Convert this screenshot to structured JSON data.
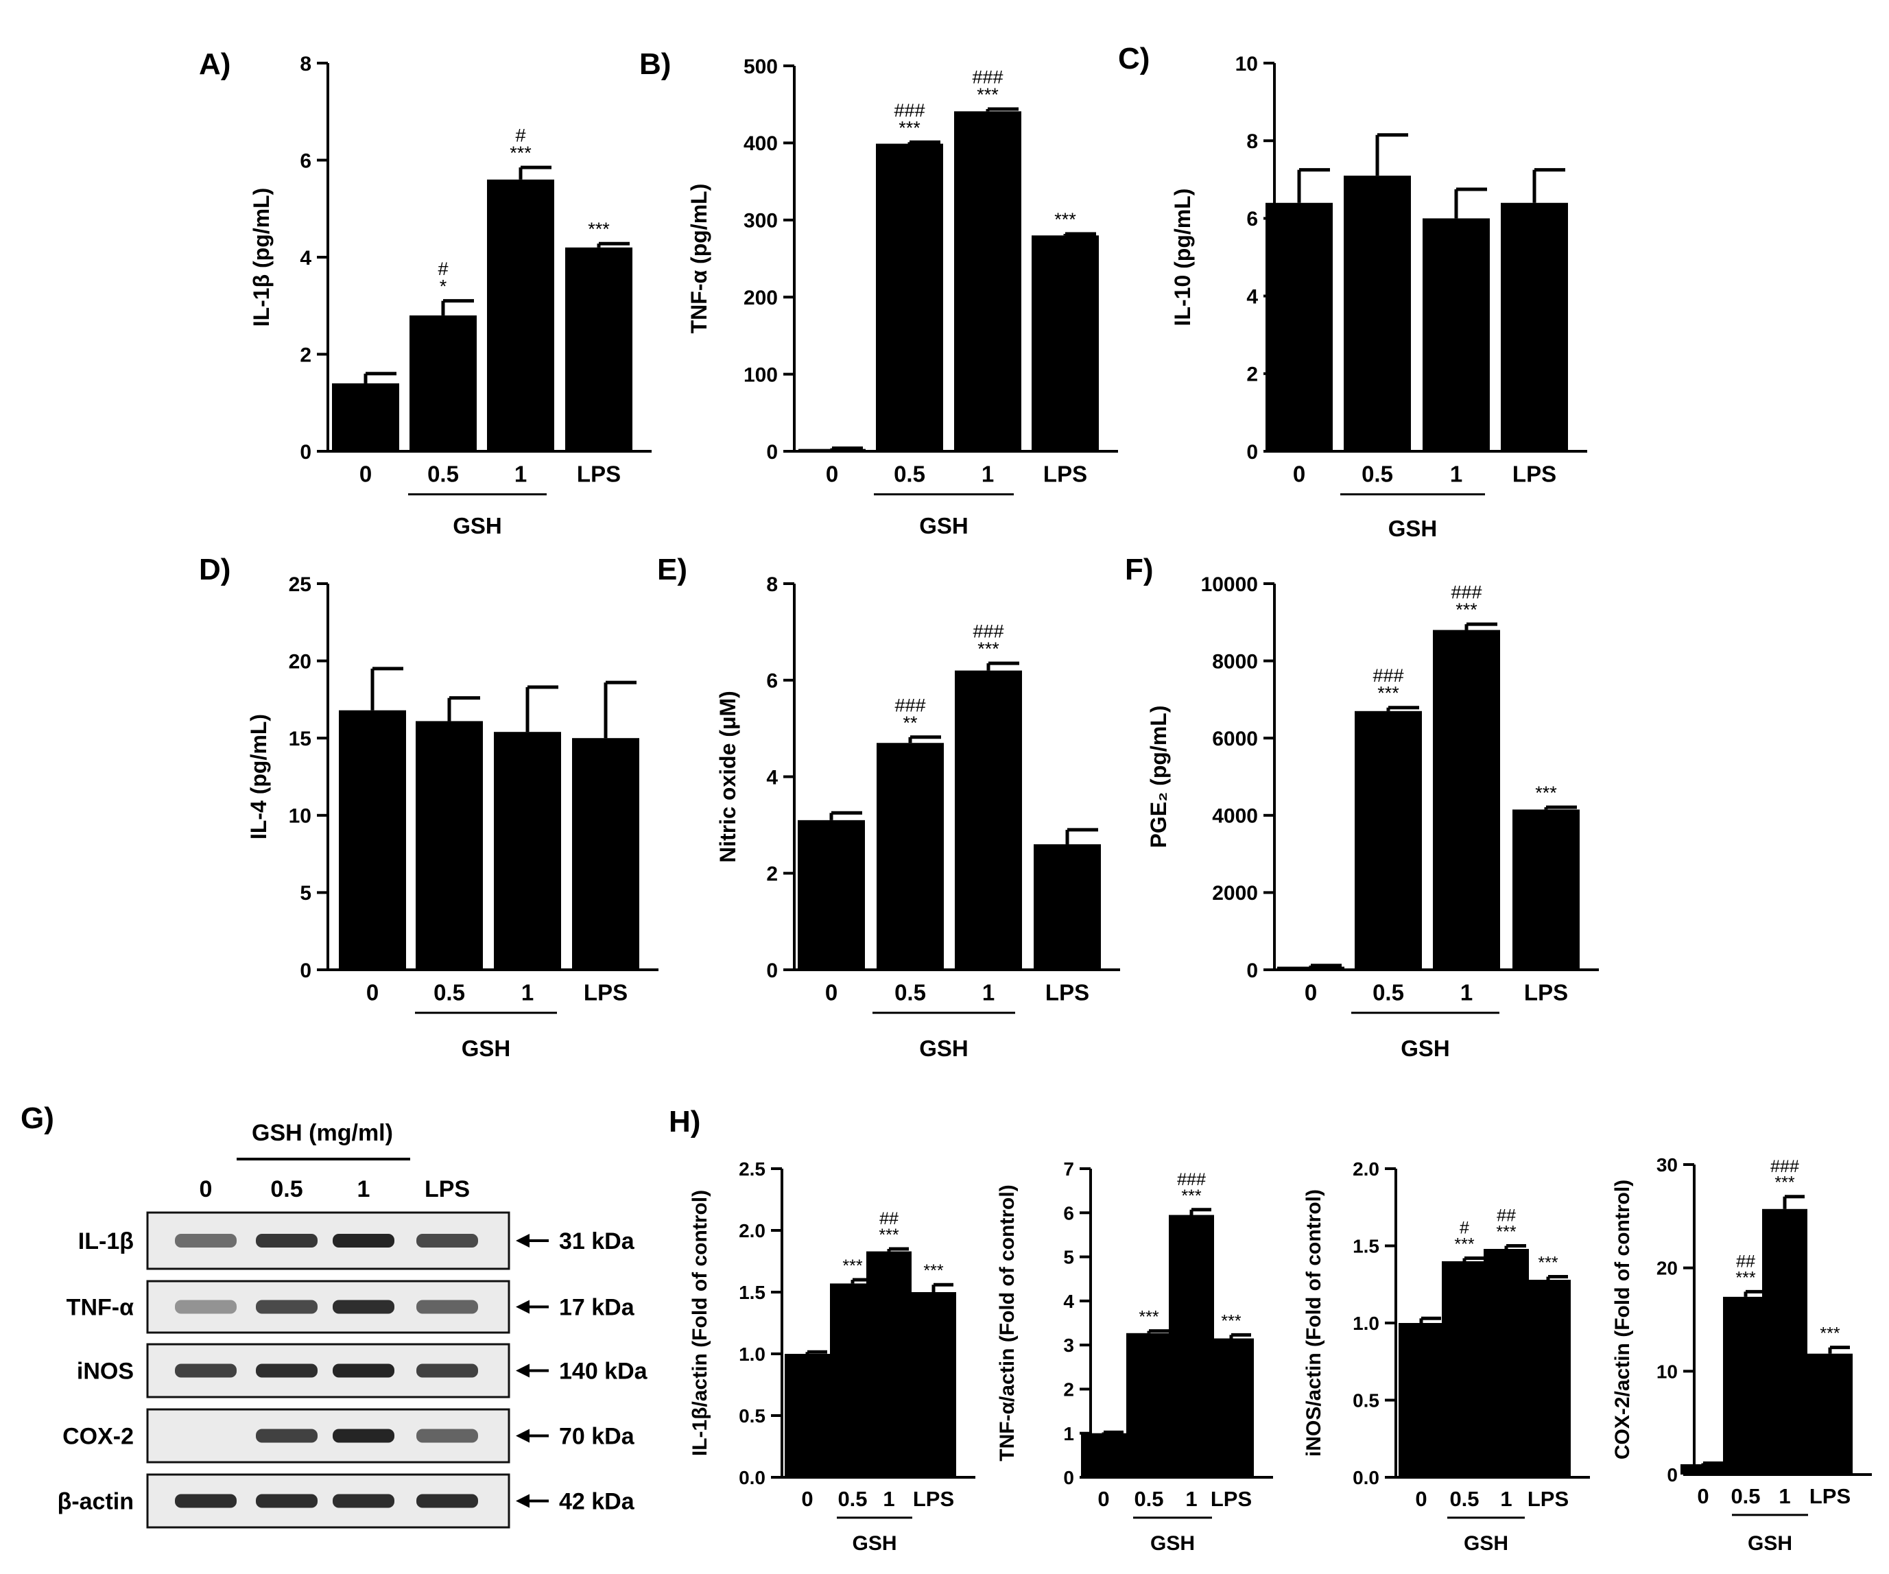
{
  "chart_data": [
    {
      "id": "A",
      "panel_label": "A)",
      "type": "bar",
      "ylabel": "IL-1β (pg/mL)",
      "categories": [
        "0",
        "0.5",
        "1",
        "LPS"
      ],
      "group_label": "GSH",
      "ylim": [
        0,
        8
      ],
      "yticks": [
        "0",
        "2",
        "4",
        "6",
        "8"
      ],
      "values": [
        1.4,
        2.8,
        5.6,
        4.2
      ],
      "errors": [
        0.2,
        0.3,
        0.25,
        0.08
      ],
      "significance": [
        [],
        [
          "#",
          "*"
        ],
        [
          "#",
          "***"
        ],
        [
          "***"
        ]
      ]
    },
    {
      "id": "B",
      "panel_label": "B)",
      "type": "bar",
      "ylabel": "TNF-α (pg/mL)",
      "categories": [
        "0",
        "0.5",
        "1",
        "LPS"
      ],
      "group_label": "GSH",
      "ylim": [
        0,
        500
      ],
      "yticks": [
        "0",
        "100",
        "200",
        "300",
        "400",
        "500"
      ],
      "values": [
        3,
        399,
        441,
        280
      ],
      "errors": [
        1,
        2,
        3,
        2
      ],
      "significance": [
        [],
        [
          "###",
          "***"
        ],
        [
          "###",
          "***"
        ],
        [
          "***"
        ]
      ]
    },
    {
      "id": "C",
      "panel_label": "C)",
      "type": "bar",
      "ylabel": "IL-10 (pg/mL)",
      "categories": [
        "0",
        "0.5",
        "1",
        "LPS"
      ],
      "group_label": "GSH",
      "ylim": [
        0,
        10
      ],
      "yticks": [
        "0",
        "2",
        "4",
        "6",
        "8",
        "10"
      ],
      "values": [
        6.4,
        7.1,
        6.0,
        6.4
      ],
      "errors": [
        0.85,
        1.05,
        0.75,
        0.85
      ],
      "significance": [
        [],
        [],
        [],
        []
      ]
    },
    {
      "id": "D",
      "panel_label": "D)",
      "type": "bar",
      "ylabel": "IL-4 (pg/mL)",
      "categories": [
        "0",
        "0.5",
        "1",
        "LPS"
      ],
      "group_label": "GSH",
      "ylim": [
        0,
        25
      ],
      "yticks": [
        "0",
        "5",
        "10",
        "15",
        "20",
        "25"
      ],
      "values": [
        16.8,
        16.1,
        15.4,
        15.0
      ],
      "errors": [
        2.7,
        1.5,
        2.9,
        3.6
      ],
      "significance": [
        [],
        [],
        [],
        []
      ]
    },
    {
      "id": "E",
      "panel_label": "E)",
      "type": "bar",
      "ylabel": "Nitric oxide (μM)",
      "categories": [
        "0",
        "0.5",
        "1",
        "LPS"
      ],
      "group_label": "GSH",
      "ylim": [
        0,
        8
      ],
      "yticks": [
        "0",
        "2",
        "4",
        "6",
        "8"
      ],
      "values": [
        3.1,
        4.7,
        6.2,
        2.6
      ],
      "errors": [
        0.15,
        0.12,
        0.15,
        0.3
      ],
      "significance": [
        [],
        [
          "###",
          "**"
        ],
        [
          "###",
          "***"
        ],
        []
      ]
    },
    {
      "id": "F",
      "panel_label": "F)",
      "type": "bar",
      "ylabel": "PGE₂ (pg/mL)",
      "categories": [
        "0",
        "0.5",
        "1",
        "LPS"
      ],
      "group_label": "GSH",
      "ylim": [
        0,
        10000
      ],
      "yticks": [
        "0",
        "2000",
        "4000",
        "6000",
        "8000",
        "10000"
      ],
      "values": [
        80,
        6700,
        8800,
        4150
      ],
      "errors": [
        30,
        90,
        150,
        60
      ],
      "significance": [
        [],
        [
          "###",
          "***"
        ],
        [
          "###",
          "***"
        ],
        [
          "***"
        ]
      ]
    },
    {
      "id": "H1",
      "panel_label": "H)",
      "type": "bar",
      "ylabel": "IL-1β/actin (Fold of control)",
      "categories": [
        "0",
        "0.5",
        "1",
        "LPS"
      ],
      "group_label": "GSH",
      "ylim": [
        0,
        2.5
      ],
      "yticks": [
        "0.0",
        "0.5",
        "1.0",
        "1.5",
        "2.0",
        "2.5"
      ],
      "values": [
        1.0,
        1.57,
        1.83,
        1.5
      ],
      "errors": [
        0.015,
        0.03,
        0.02,
        0.06
      ],
      "significance": [
        [],
        [
          "***"
        ],
        [
          "##",
          "***"
        ],
        [
          "***"
        ]
      ]
    },
    {
      "id": "H2",
      "panel_label": "",
      "type": "bar",
      "ylabel": "TNF-α/actin (Fold of control)",
      "categories": [
        "0",
        "0.5",
        "1",
        "LPS"
      ],
      "group_label": "GSH",
      "ylim": [
        0,
        7
      ],
      "yticks": [
        "0",
        "1",
        "2",
        "3",
        "4",
        "5",
        "6",
        "7"
      ],
      "values": [
        1.0,
        3.27,
        5.95,
        3.15
      ],
      "errors": [
        0.02,
        0.05,
        0.12,
        0.08
      ],
      "significance": [
        [],
        [
          "***"
        ],
        [
          "###",
          "***"
        ],
        [
          "***"
        ]
      ]
    },
    {
      "id": "H3",
      "panel_label": "",
      "type": "bar",
      "ylabel": "iNOS/actin (Fold of control)",
      "categories": [
        "0",
        "0.5",
        "1",
        "LPS"
      ],
      "group_label": "GSH",
      "ylim": [
        0,
        2.0
      ],
      "yticks": [
        "0.0",
        "0.5",
        "1.0",
        "1.5",
        "2.0"
      ],
      "values": [
        1.0,
        1.4,
        1.48,
        1.28
      ],
      "errors": [
        0.03,
        0.02,
        0.02,
        0.02
      ],
      "significance": [
        [],
        [
          "#",
          "***"
        ],
        [
          "##",
          "***"
        ],
        [
          "***"
        ]
      ]
    },
    {
      "id": "H4",
      "panel_label": "",
      "type": "bar",
      "ylabel": "COX-2/actin (Fold of control)",
      "categories": [
        "0",
        "0.5",
        "1",
        "LPS"
      ],
      "group_label": "GSH",
      "ylim": [
        0,
        30
      ],
      "yticks": [
        "0",
        "10",
        "20",
        "30"
      ],
      "values": [
        1.0,
        17.2,
        25.7,
        11.7
      ],
      "errors": [
        0.1,
        0.5,
        1.2,
        0.6
      ],
      "significance": [
        [],
        [
          "##",
          "***"
        ],
        [
          "###",
          "***"
        ],
        [
          "***"
        ]
      ]
    }
  ],
  "blot": {
    "panel_label": "G)",
    "treatment_label": "GSH (mg/ml)",
    "lanes": [
      "0",
      "0.5",
      "1",
      "LPS"
    ],
    "rows": [
      {
        "protein": "IL-1β",
        "kda": "31 kDa",
        "intensity": [
          0.55,
          0.85,
          0.95,
          0.75
        ]
      },
      {
        "protein": "TNF-α",
        "kda": "17 kDa",
        "intensity": [
          0.3,
          0.75,
          0.9,
          0.6
        ]
      },
      {
        "protein": "iNOS",
        "kda": "140 kDa",
        "intensity": [
          0.8,
          0.9,
          0.95,
          0.8
        ]
      },
      {
        "protein": "COX-2",
        "kda": "70 kDa",
        "intensity": [
          0.0,
          0.8,
          0.95,
          0.6
        ]
      },
      {
        "protein": "β-actin",
        "kda": "42 kDa",
        "intensity": [
          0.9,
          0.9,
          0.9,
          0.9
        ]
      }
    ]
  }
}
